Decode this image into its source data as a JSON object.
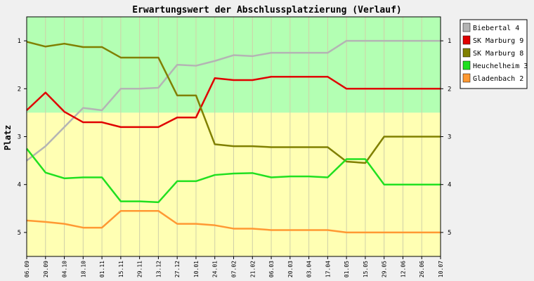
{
  "chart_data": {
    "type": "line",
    "title": "Erwartungswert der Abschlussplatzierung (Verlauf)",
    "ylabel": "Platz",
    "xlabel": "",
    "ylim": [
      5.5,
      0.5
    ],
    "yticks": [
      1,
      2,
      3,
      4,
      5
    ],
    "y_inverted": true,
    "legend_position": "right",
    "bands": [
      {
        "from": 0.5,
        "to": 2.5,
        "color": "#b3ffb3"
      },
      {
        "from": 2.5,
        "to": 5.5,
        "color": "#ffffb3"
      }
    ],
    "x": [
      "06.09",
      "20.09",
      "04.10",
      "18.10",
      "01.11",
      "15.11",
      "29.11",
      "13.12",
      "27.12",
      "10.01",
      "24.01",
      "07.02",
      "21.02",
      "06.03",
      "20.03",
      "03.04",
      "17.04",
      "01.05",
      "15.05",
      "29.05",
      "12.06",
      "26.06",
      "10.07"
    ],
    "series": [
      {
        "name": "Biebertal 4",
        "color": "#b4b4b4",
        "values": [
          3.5,
          3.2,
          2.8,
          2.4,
          2.45,
          2.0,
          2.0,
          1.98,
          1.5,
          1.52,
          1.42,
          1.3,
          1.32,
          1.25,
          1.25,
          1.25,
          1.25,
          1.0,
          1.0,
          1.0,
          1.0,
          1.0,
          1.0
        ]
      },
      {
        "name": "SK Marburg 9",
        "color": "#e00000",
        "values": [
          2.45,
          2.08,
          2.48,
          2.7,
          2.7,
          2.8,
          2.8,
          2.8,
          2.6,
          2.6,
          1.78,
          1.82,
          1.82,
          1.75,
          1.75,
          1.75,
          1.75,
          2.0,
          2.0,
          2.0,
          2.0,
          2.0,
          2.0
        ]
      },
      {
        "name": "SK Marburg 8",
        "color": "#808000",
        "values": [
          1.02,
          1.12,
          1.06,
          1.13,
          1.13,
          1.35,
          1.35,
          1.35,
          2.14,
          2.14,
          3.16,
          3.2,
          3.2,
          3.22,
          3.22,
          3.22,
          3.22,
          3.52,
          3.55,
          3.0,
          3.0,
          3.0,
          3.0
        ]
      },
      {
        "name": "Heuchelheim 3",
        "color": "#20e020",
        "values": [
          3.25,
          3.75,
          3.87,
          3.85,
          3.85,
          4.35,
          4.35,
          4.37,
          3.93,
          3.93,
          3.8,
          3.77,
          3.76,
          3.85,
          3.83,
          3.83,
          3.85,
          3.47,
          3.47,
          4.0,
          4.0,
          4.0,
          4.0
        ]
      },
      {
        "name": "Gladenbach 2",
        "color": "#ff9933",
        "values": [
          4.75,
          4.78,
          4.82,
          4.9,
          4.9,
          4.55,
          4.55,
          4.55,
          4.82,
          4.82,
          4.85,
          4.92,
          4.92,
          4.95,
          4.95,
          4.95,
          4.95,
          5.0,
          5.0,
          5.0,
          5.0,
          5.0,
          5.0
        ]
      }
    ]
  }
}
